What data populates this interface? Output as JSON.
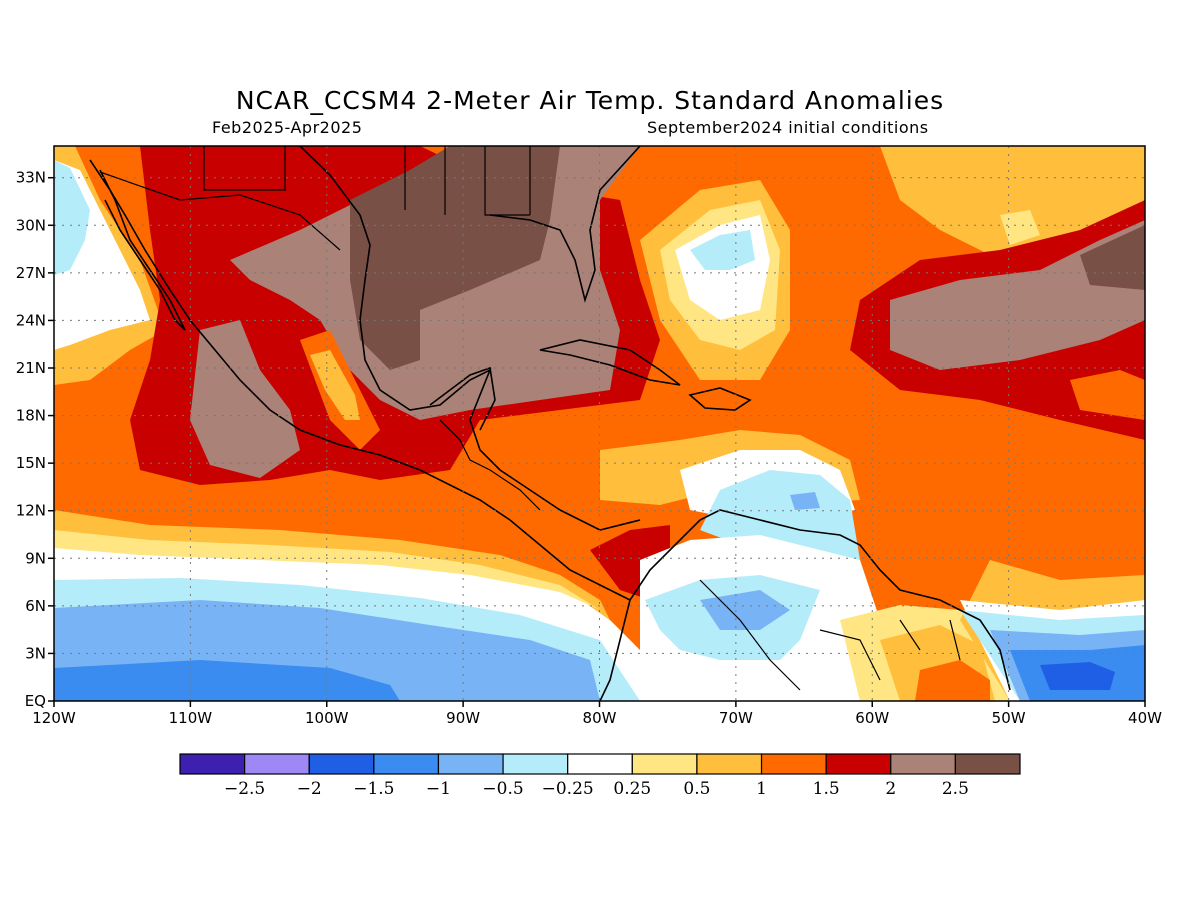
{
  "header": {
    "title": "NCAR_CCSM4 2-Meter Air Temp. Standard Anomalies",
    "period": "Feb2025-Apr2025",
    "initial_conditions": "September2024 initial conditions"
  },
  "map": {
    "lon_range": [
      -120,
      -40
    ],
    "lat_range": [
      0,
      35
    ],
    "lat_labels": [
      "EQ",
      "3N",
      "6N",
      "9N",
      "12N",
      "15N",
      "18N",
      "21N",
      "24N",
      "27N",
      "30N",
      "33N"
    ],
    "lat_values": [
      0,
      3,
      6,
      9,
      12,
      15,
      18,
      21,
      24,
      27,
      30,
      33
    ],
    "lon_labels": [
      "120W",
      "110W",
      "100W",
      "90W",
      "80W",
      "70W",
      "60W",
      "50W",
      "40W"
    ],
    "lon_values": [
      -120,
      -110,
      -100,
      -90,
      -80,
      -70,
      -60,
      -50,
      -40
    ],
    "gridlines": "dotted"
  },
  "colorbar": {
    "colors": [
      "#3d20b0",
      "#9d88f5",
      "#1f5fe6",
      "#3b8cf0",
      "#78b4f5",
      "#b4ecfa",
      "#ffffff",
      "#ffe682",
      "#ffbe3c",
      "#ff6a00",
      "#c80000",
      "#aa8278",
      "#785046"
    ],
    "labels": [
      "−2.5",
      "−2",
      "−1.5",
      "−1",
      "−0.5",
      "−0.25",
      "0.25",
      "0.5",
      "1",
      "1.5",
      "2",
      "2.5"
    ]
  }
}
